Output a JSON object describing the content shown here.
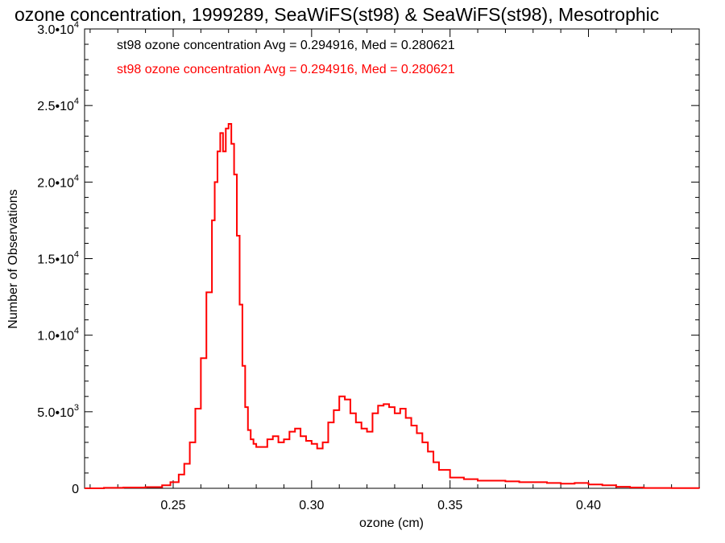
{
  "chart_data": {
    "type": "line",
    "title": "ozone concentration, 1999289, SeaWiFS(st98) & SeaWiFS(st98), Mesotrophic",
    "xlabel": "ozone (cm)",
    "ylabel": "Number of Observations",
    "xlim": [
      0.218,
      0.44
    ],
    "ylim": [
      0,
      30000
    ],
    "xticks": [
      0.25,
      0.3,
      0.35,
      0.4
    ],
    "xtick_labels": [
      "0.25",
      "0.30",
      "0.35",
      "0.40"
    ],
    "yticks": [
      {
        "value": 0,
        "mant": "0",
        "exp": ""
      },
      {
        "value": 5000,
        "mant": "5.0•10",
        "exp": "3"
      },
      {
        "value": 10000,
        "mant": "1.0•10",
        "exp": "4"
      },
      {
        "value": 15000,
        "mant": "1.5•10",
        "exp": "4"
      },
      {
        "value": 20000,
        "mant": "2.0•10",
        "exp": "4"
      },
      {
        "value": 25000,
        "mant": "2.5•10",
        "exp": "4"
      },
      {
        "value": 30000,
        "mant": "3.0•10",
        "exp": "4"
      }
    ],
    "legend": [
      {
        "text": "st98 ozone concentration Avg = 0.294916, Med = 0.280621",
        "color": "#000000"
      },
      {
        "text": "st98 ozone concentration Avg = 0.294916, Med = 0.280621",
        "color": "#ff0000"
      }
    ],
    "legend_position": "top-left",
    "series": [
      {
        "color": "#ff0000",
        "step": true,
        "x": [
          0.218,
          0.225,
          0.232,
          0.24,
          0.246,
          0.249,
          0.252,
          0.254,
          0.256,
          0.258,
          0.26,
          0.262,
          0.264,
          0.265,
          0.266,
          0.267,
          0.268,
          0.269,
          0.27,
          0.271,
          0.272,
          0.273,
          0.274,
          0.275,
          0.276,
          0.277,
          0.278,
          0.279,
          0.28,
          0.282,
          0.284,
          0.286,
          0.288,
          0.29,
          0.292,
          0.294,
          0.296,
          0.298,
          0.3,
          0.302,
          0.304,
          0.306,
          0.308,
          0.31,
          0.312,
          0.314,
          0.316,
          0.318,
          0.32,
          0.322,
          0.324,
          0.326,
          0.328,
          0.33,
          0.332,
          0.334,
          0.336,
          0.338,
          0.34,
          0.342,
          0.344,
          0.346,
          0.35,
          0.355,
          0.36,
          0.365,
          0.37,
          0.375,
          0.38,
          0.385,
          0.39,
          0.395,
          0.4,
          0.405,
          0.41,
          0.415,
          0.42,
          0.43,
          0.44
        ],
        "y": [
          0,
          30,
          50,
          80,
          200,
          400,
          900,
          1600,
          3000,
          5200,
          8500,
          12800,
          17500,
          20000,
          22000,
          23200,
          22000,
          23500,
          23800,
          22500,
          20500,
          16500,
          12000,
          8000,
          5300,
          3800,
          3200,
          2900,
          2700,
          2700,
          3200,
          3400,
          3000,
          3200,
          3700,
          3900,
          3400,
          3100,
          2900,
          2600,
          3000,
          4300,
          5100,
          6000,
          5800,
          4900,
          4300,
          3900,
          3700,
          4900,
          5400,
          5500,
          5300,
          4900,
          5200,
          4600,
          4100,
          3600,
          3000,
          2400,
          1700,
          1200,
          700,
          600,
          500,
          500,
          450,
          400,
          400,
          350,
          300,
          350,
          250,
          200,
          100,
          50,
          20,
          10,
          0
        ]
      }
    ]
  }
}
